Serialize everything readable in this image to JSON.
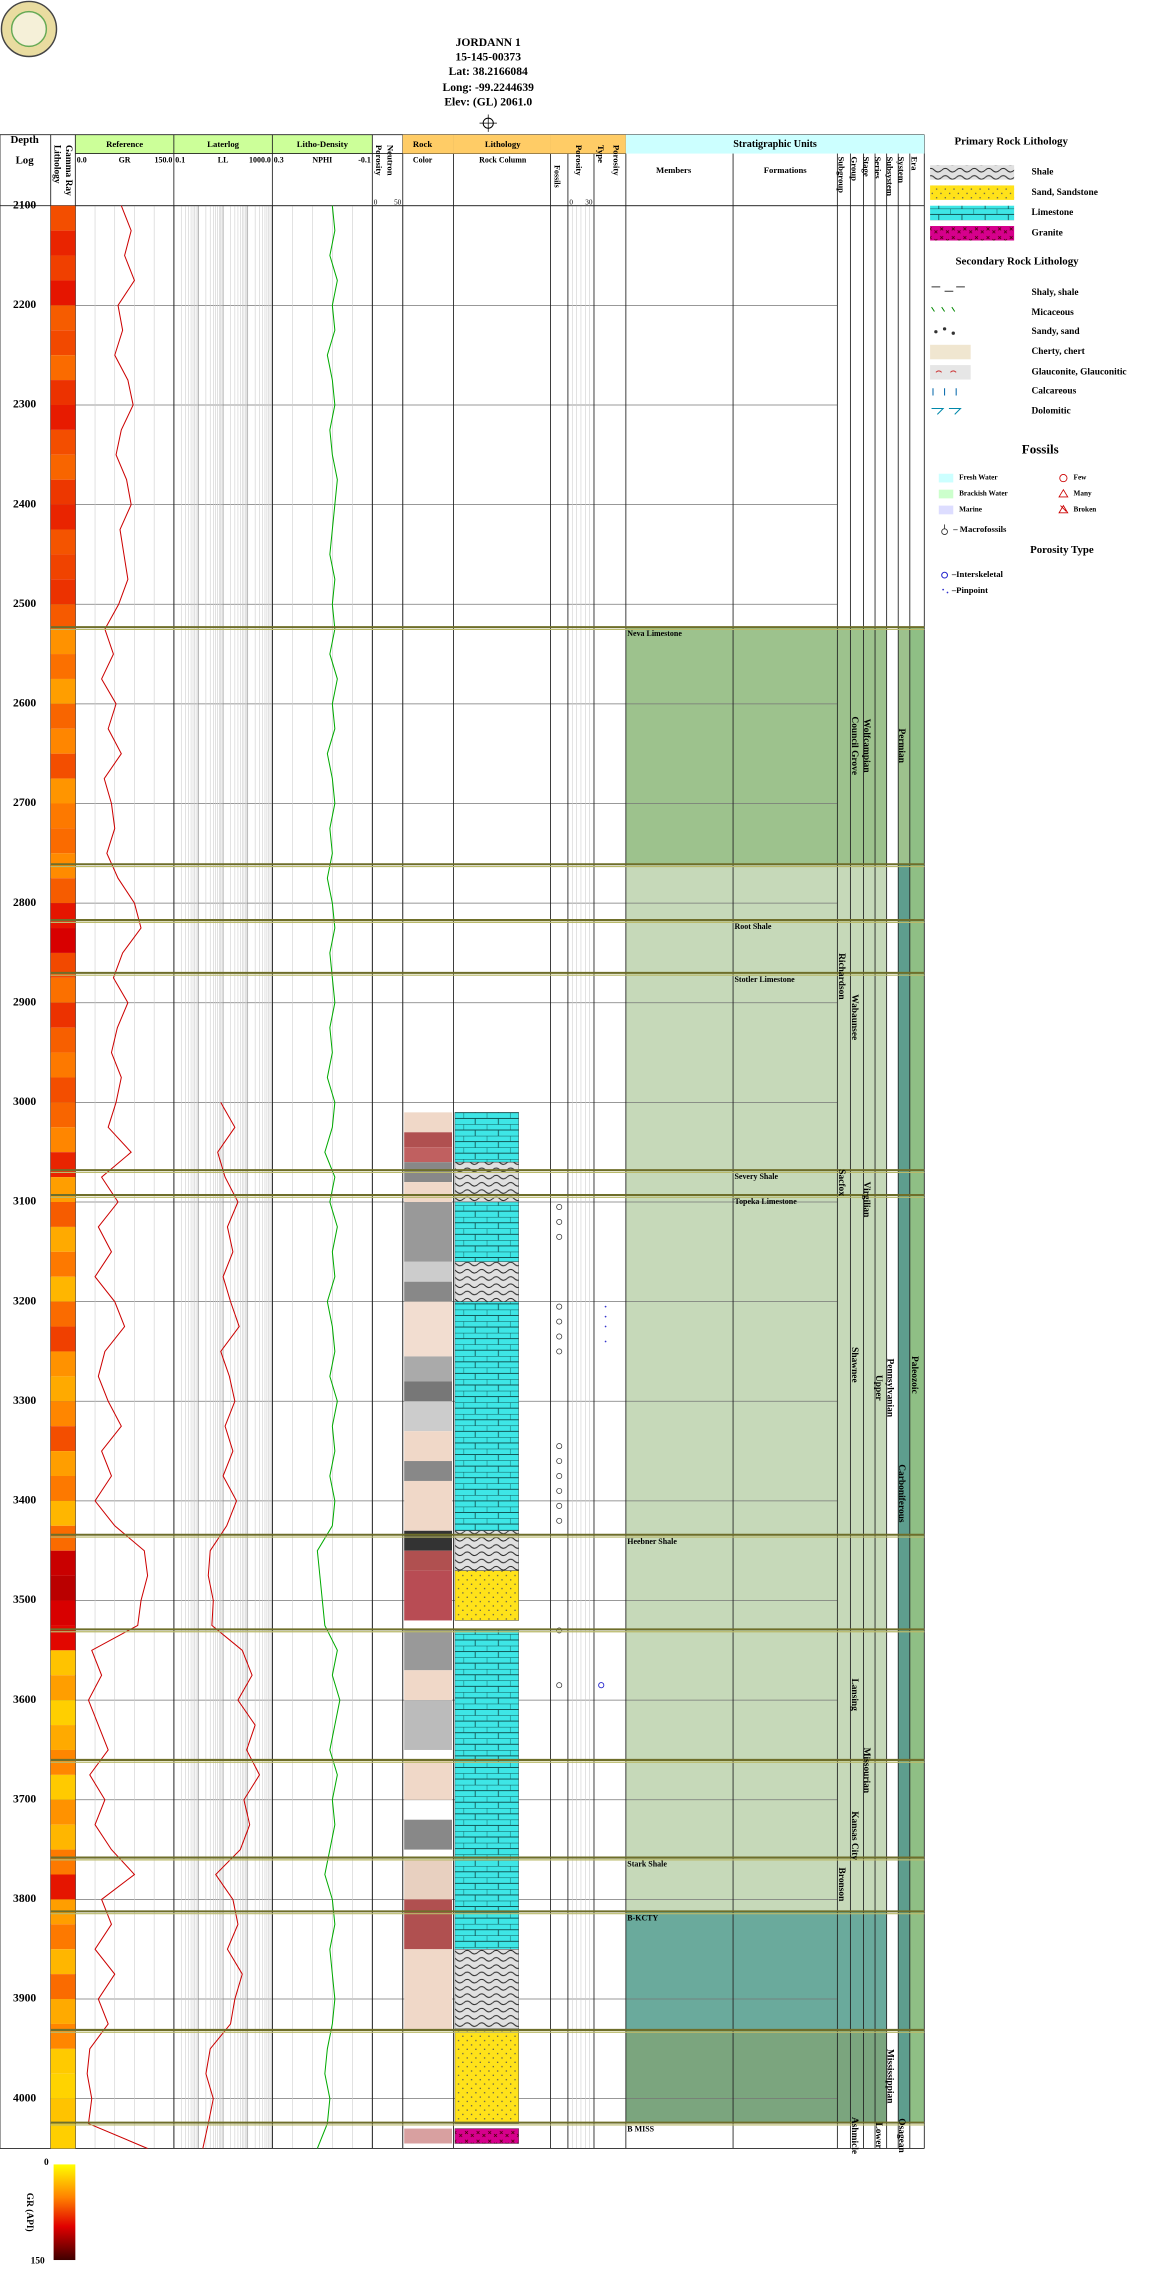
{
  "chart_data": {
    "type": "well_log",
    "title_block": [
      "JORDANN 1",
      "15-145-00373",
      "Lat: 38.2166084",
      "Long: -99.2244639",
      "Elev: (GL) 2061.0"
    ],
    "depth_header": [
      "Depth",
      "Log"
    ],
    "gamma_header": [
      "Lithology",
      "Gamma Ray"
    ],
    "ylim": [
      2100,
      4050
    ],
    "yticks": [
      2100,
      2200,
      2300,
      2400,
      2500,
      2600,
      2700,
      2800,
      2900,
      3000,
      3100,
      3200,
      3300,
      3400,
      3500,
      3600,
      3700,
      3800,
      3900,
      4000
    ],
    "x": [
      2100,
      2125,
      2150,
      2175,
      2200,
      2225,
      2250,
      2275,
      2300,
      2325,
      2350,
      2375,
      2400,
      2425,
      2450,
      2475,
      2500,
      2525,
      2550,
      2575,
      2600,
      2625,
      2650,
      2675,
      2700,
      2725,
      2750,
      2775,
      2800,
      2825,
      2850,
      2875,
      2900,
      2925,
      2950,
      2975,
      3000,
      3025,
      3050,
      3075,
      3100,
      3125,
      3150,
      3175,
      3200,
      3225,
      3250,
      3275,
      3300,
      3325,
      3350,
      3375,
      3400,
      3425,
      3450,
      3475,
      3500,
      3525,
      3550,
      3575,
      3600,
      3625,
      3650,
      3675,
      3700,
      3725,
      3750,
      3775,
      3800,
      3825,
      3850,
      3875,
      3900,
      3925,
      3950,
      3975,
      4000,
      4025,
      4050
    ],
    "tracks": [
      {
        "title": "Reference",
        "curve": "GR",
        "color": "#cc0000",
        "header_color": "#ccff99",
        "xlim": [
          0,
          150
        ],
        "xticks": [
          {
            "value": 0,
            "label": "0.0"
          },
          {
            "value": 150,
            "label": "150.0"
          }
        ],
        "values": [
          70,
          85,
          75,
          90,
          65,
          72,
          60,
          80,
          88,
          70,
          62,
          78,
          85,
          68,
          74,
          80,
          66,
          45,
          58,
          40,
          62,
          50,
          70,
          44,
          55,
          60,
          48,
          65,
          90,
          100,
          72,
          58,
          80,
          64,
          55,
          70,
          62,
          50,
          85,
          40,
          65,
          35,
          55,
          30,
          60,
          75,
          45,
          35,
          50,
          70,
          40,
          55,
          30,
          60,
          105,
          110,
          100,
          95,
          25,
          40,
          20,
          35,
          50,
          22,
          45,
          30,
          55,
          90,
          40,
          55,
          30,
          60,
          35,
          50,
          22,
          18,
          25,
          20,
          110
        ]
      },
      {
        "title": "Laterlog",
        "curve": "LL",
        "color": "#cc0000",
        "header_color": "#ccff99",
        "log": true,
        "xlim": [
          0.1,
          1000
        ],
        "xticks": [
          0.1,
          {
            "value": 1000,
            "label": "1000.0"
          }
        ],
        "values": [
          null,
          null,
          null,
          null,
          null,
          null,
          null,
          null,
          null,
          null,
          null,
          null,
          null,
          null,
          null,
          null,
          null,
          null,
          null,
          null,
          null,
          null,
          null,
          null,
          null,
          null,
          null,
          null,
          null,
          null,
          null,
          null,
          null,
          null,
          null,
          null,
          8,
          30,
          6,
          12,
          40,
          15,
          25,
          10,
          20,
          45,
          8,
          18,
          30,
          12,
          25,
          10,
          35,
          14,
          3,
          2.5,
          4,
          3.5,
          60,
          150,
          40,
          200,
          90,
          300,
          70,
          120,
          50,
          5,
          25,
          40,
          15,
          60,
          30,
          20,
          3,
          2,
          4,
          2.5,
          1.5
        ]
      },
      {
        "title": "Litho-Density",
        "curve": "NPHI",
        "color": "#00aa00",
        "header_color": "#ccff99",
        "xlim": [
          0.3,
          -0.1
        ],
        "xticks": [
          0.3,
          -0.1
        ],
        "values": [
          0.06,
          0.05,
          0.07,
          0.04,
          0.06,
          0.05,
          0.08,
          0.06,
          0.05,
          0.07,
          0.06,
          0.04,
          0.05,
          0.06,
          0.07,
          0.05,
          0.06,
          0.05,
          0.07,
          0.04,
          0.06,
          0.05,
          0.08,
          0.06,
          0.05,
          0.07,
          0.06,
          0.08,
          0.06,
          0.05,
          0.07,
          0.06,
          0.05,
          0.07,
          0.06,
          0.08,
          0.05,
          0.06,
          0.09,
          0.05,
          0.07,
          0.04,
          0.06,
          0.05,
          0.08,
          0.06,
          0.05,
          0.07,
          0.04,
          0.06,
          0.05,
          0.07,
          0.05,
          0.06,
          0.12,
          0.11,
          0.1,
          0.09,
          0.04,
          0.06,
          0.03,
          0.05,
          0.07,
          0.04,
          0.06,
          0.05,
          0.07,
          0.09,
          0.06,
          0.05,
          0.07,
          0.06,
          0.05,
          0.06,
          0.08,
          0.09,
          0.07,
          0.08,
          0.12
        ]
      },
      {
        "title": [
          "Porosity",
          "Neutron"
        ],
        "xlim": [
          0,
          50
        ],
        "xticks": [
          0,
          50
        ]
      }
    ],
    "rock_color": {
      "title": [
        "Rock",
        "Color"
      ],
      "intervals": [
        {
          "top": 3010,
          "base": 3030,
          "color": "#f0d8c8"
        },
        {
          "top": 3030,
          "base": 3045,
          "color": "#b05050"
        },
        {
          "top": 3045,
          "base": 3060,
          "color": "#c06060"
        },
        {
          "top": 3060,
          "base": 3080,
          "color": "#888888"
        },
        {
          "top": 3080,
          "base": 3100,
          "color": "#f0d8c8"
        },
        {
          "top": 3100,
          "base": 3160,
          "color": "#999999"
        },
        {
          "top": 3160,
          "base": 3180,
          "color": "#cccccc"
        },
        {
          "top": 3180,
          "base": 3200,
          "color": "#888888"
        },
        {
          "top": 3200,
          "base": 3255,
          "color": "#f2ddd0"
        },
        {
          "top": 3255,
          "base": 3280,
          "color": "#aaaaaa"
        },
        {
          "top": 3280,
          "base": 3300,
          "color": "#777777"
        },
        {
          "top": 3300,
          "base": 3330,
          "color": "#cccccc"
        },
        {
          "top": 3330,
          "base": 3360,
          "color": "#f0d8c8"
        },
        {
          "top": 3360,
          "base": 3380,
          "color": "#888888"
        },
        {
          "top": 3380,
          "base": 3430,
          "color": "#f0d8c8"
        },
        {
          "top": 3430,
          "base": 3450,
          "color": "#333333"
        },
        {
          "top": 3450,
          "base": 3470,
          "color": "#b05050"
        },
        {
          "top": 3470,
          "base": 3520,
          "color": "#b84c54"
        },
        {
          "top": 3530,
          "base": 3570,
          "color": "#999999"
        },
        {
          "top": 3570,
          "base": 3600,
          "color": "#f0d8c8"
        },
        {
          "top": 3600,
          "base": 3650,
          "color": "#bbbbbb"
        },
        {
          "top": 3660,
          "base": 3700,
          "color": "#f0d8c8"
        },
        {
          "top": 3720,
          "base": 3750,
          "color": "#888888"
        },
        {
          "top": 3760,
          "base": 3800,
          "color": "#e8d0c0"
        },
        {
          "top": 3800,
          "base": 3850,
          "color": "#b05050"
        },
        {
          "top": 3850,
          "base": 3930,
          "color": "#f0d8c8"
        },
        {
          "top": 4030,
          "base": 4045,
          "color": "#d8a0a0"
        }
      ]
    },
    "lithology": {
      "title": "Lithology",
      "subtitle": "Rock Column",
      "intervals": [
        {
          "top": 3010,
          "base": 3060,
          "rock": "limestone"
        },
        {
          "top": 3060,
          "base": 3100,
          "rock": "shale"
        },
        {
          "top": 3100,
          "base": 3160,
          "rock": "limestone"
        },
        {
          "top": 3160,
          "base": 3200,
          "rock": "shale"
        },
        {
          "top": 3200,
          "base": 3430,
          "rock": "limestone"
        },
        {
          "top": 3430,
          "base": 3470,
          "rock": "shale"
        },
        {
          "top": 3470,
          "base": 3520,
          "rock": "sand"
        },
        {
          "top": 3530,
          "base": 3850,
          "rock": "limestone"
        },
        {
          "top": 3850,
          "base": 3930,
          "rock": "shale"
        },
        {
          "top": 3930,
          "base": 4025,
          "rock": "sand"
        },
        {
          "top": 4030,
          "base": 4045,
          "rock": "granite"
        }
      ]
    },
    "fossils": {
      "title": "Fossils",
      "depths": [
        3105,
        3120,
        3135,
        3205,
        3220,
        3235,
        3250,
        3345,
        3360,
        3375,
        3390,
        3405,
        3420,
        3530,
        3585
      ]
    },
    "porosity": {
      "title": "Porosity",
      "xticks": [
        0,
        30
      ]
    },
    "porosity_type": {
      "title": [
        "Type",
        "Porosity"
      ],
      "pinpoint": [
        3205,
        3215,
        3225,
        3240
      ],
      "interskeletal": [
        3585
      ]
    },
    "strat": {
      "title": "Stratigraphic Units",
      "members_title": "Members",
      "formations_title": "Formations",
      "bands": [
        {
          "top": 2523,
          "base": 2761,
          "color": "#9dc28d"
        },
        {
          "top": 2761,
          "base": 3812,
          "color": "#c6d9b9"
        },
        {
          "top": 3812,
          "base": 3931,
          "color": "#6aaa9c"
        },
        {
          "top": 3931,
          "base": 4024,
          "color": "#7ba57e"
        }
      ],
      "tops": [
        {
          "depth": 2523,
          "member": "Neva Limestone"
        },
        {
          "depth": 2761
        },
        {
          "depth": 2817,
          "formation": "Root Shale"
        },
        {
          "depth": 2870,
          "formation": "Stotler Limestone"
        },
        {
          "depth": 3068,
          "formation": "Severy Shale"
        },
        {
          "depth": 3093,
          "formation": "Topeka Limestone"
        },
        {
          "depth": 3434,
          "member": "Heebner Shale"
        },
        {
          "depth": 3529
        },
        {
          "depth": 3660
        },
        {
          "depth": 3758,
          "member": "Stark Shale"
        },
        {
          "depth": 3812,
          "member": "B-KCTY"
        },
        {
          "depth": 3931
        },
        {
          "depth": 4024,
          "member": "B MISS"
        }
      ],
      "columns": [
        {
          "name": "Subgroup",
          "units": [
            {
              "label": "Richardson",
              "top": 2817,
              "base": 2930
            },
            {
              "label": "Sacfox",
              "top": 3068,
              "base": 3093
            },
            {
              "label": "Bronson",
              "top": 3758,
              "base": 3812
            }
          ]
        },
        {
          "name": "Group",
          "units": [
            {
              "label": "Council Grove",
              "top": 2523,
              "base": 2761
            },
            {
              "label": "Wabaunsee",
              "top": 2761,
              "base": 3068
            },
            {
              "label": "Shawnee",
              "top": 3093,
              "base": 3434
            },
            {
              "label": "Lansing",
              "top": 3529,
              "base": 3660
            },
            {
              "label": "Kansas City",
              "top": 3660,
              "base": 3812
            },
            {
              "label": "Ashmicle",
              "top": 4024,
              "base": 4050
            }
          ]
        },
        {
          "name": "Stage",
          "units": [
            {
              "label": "Wolfcampian",
              "top": 2523,
              "base": 2761
            },
            {
              "label": "Virgilian",
              "top": 2761,
              "base": 3434
            },
            {
              "label": "Missourian",
              "top": 3529,
              "base": 3812
            }
          ]
        },
        {
          "name": "Series",
          "units": [
            {
              "label": "Upper",
              "top": 2761,
              "base": 3812
            },
            {
              "label": "Lower",
              "top": 4024,
              "base": 4050
            }
          ]
        },
        {
          "name": "Subsystem",
          "units": [
            {
              "label": "Pennsylvanian",
              "top": 2761,
              "base": 3812
            },
            {
              "label": "Mississippian",
              "top": 3931,
              "base": 4024
            }
          ]
        },
        {
          "name": "System",
          "units": [
            {
              "label": "Permian",
              "top": 2523,
              "base": 2761,
              "color": "#9dc28d"
            },
            {
              "label": "Carboniferous",
              "top": 2761,
              "base": 4024,
              "color": "#5e9e8e"
            },
            {
              "label": "Osagean",
              "top": 4024,
              "base": 4050
            }
          ]
        },
        {
          "name": "Era",
          "units": [
            {
              "label": "Paleozoic",
              "top": 2523,
              "base": 4024,
              "color": "#8fbf85"
            }
          ]
        }
      ]
    },
    "legend": {
      "primary_title": "Primary Rock Lithology",
      "primary": [
        "Shale",
        "Sand, Sandstone",
        "Limestone",
        "Granite"
      ],
      "secondary_title": "Secondary Rock Lithology",
      "secondary": [
        "Shaly, shale",
        "Micaceous",
        "Sandy, sand",
        "Cherty, chert",
        "Glauconite, Glauconitic",
        "Calcareous",
        "Dolomitic"
      ],
      "fossils_title": "Fossils",
      "fossil_env": [
        "Fresh Water",
        "Brackish Water",
        "Marine"
      ],
      "fossil_abundance": [
        "Few",
        "Many",
        "Broken"
      ],
      "macrofossils": "– Macrofossils",
      "porosity_type_title": "Porosity Type",
      "porosity_types": [
        "–Interskeletal",
        "–Pinpoint"
      ]
    },
    "gr_scale": {
      "label": "GR (API)",
      "ticks": [
        0,
        150
      ]
    }
  }
}
